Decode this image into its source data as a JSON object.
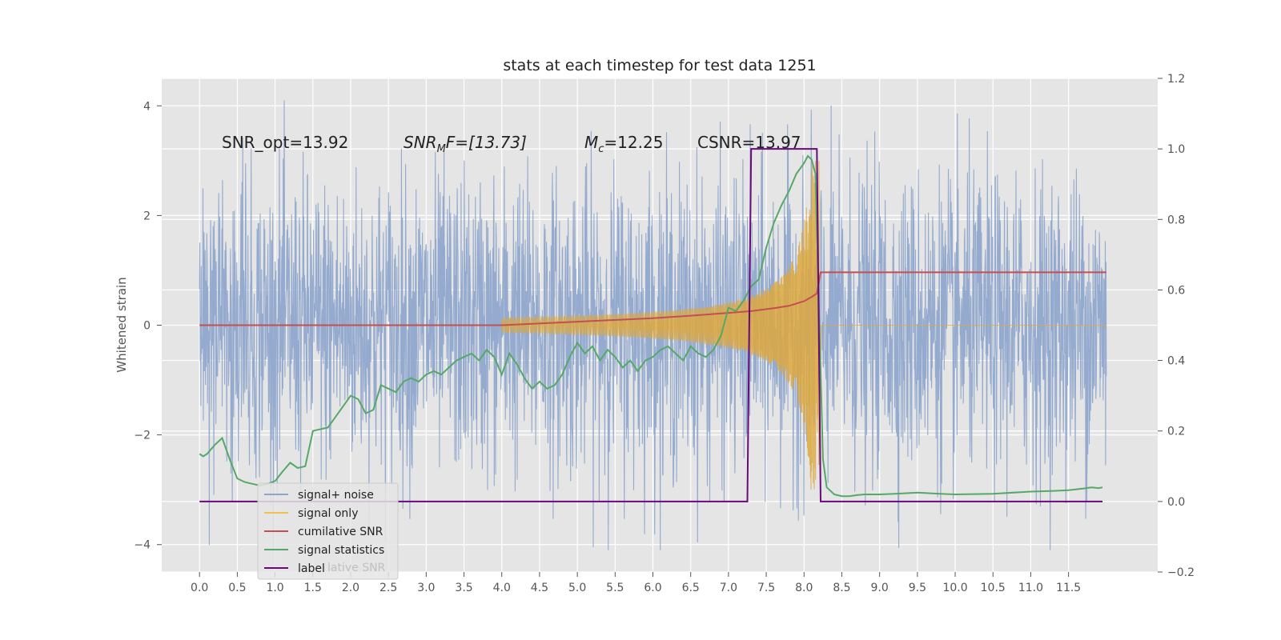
{
  "chart_data": {
    "type": "line",
    "title": "stats at each timestep for test data 1251",
    "xlabel": "",
    "ylabel": "Whitened strain",
    "y2label": "",
    "xlim": [
      -0.5,
      12.68
    ],
    "ylim": [
      -4.5,
      4.5
    ],
    "y2lim": [
      -0.2,
      1.2
    ],
    "grid": true,
    "x_ticks": [
      "0.0",
      "0.5",
      "1.0",
      "1.5",
      "2.0",
      "2.5",
      "3.0",
      "3.5",
      "4.0",
      "4.5",
      "5.0",
      "5.5",
      "6.0",
      "6.5",
      "7.0",
      "7.5",
      "8.0",
      "8.5",
      "9.0",
      "9.5",
      "10.0",
      "10.5",
      "11.0",
      "11.5"
    ],
    "y_ticks": [
      "4",
      "2",
      "0",
      "−2",
      "−4"
    ],
    "y2_ticks": [
      "1.2",
      "1.0",
      "0.8",
      "0.6",
      "0.4",
      "0.2",
      "0.0",
      "−0.2"
    ],
    "annotations": [
      {
        "text": "SNR_opt=13.92"
      },
      {
        "text": "SNR",
        "sub": "M",
        "tail": "F=[13.73]"
      },
      {
        "text": "M",
        "sub": "c",
        "tail": "=12.25"
      },
      {
        "text": "CSNR=13.97"
      }
    ],
    "legend": {
      "placement": "lower-left",
      "entries": [
        {
          "label": "signal+ noise",
          "color": "#8fa6cc"
        },
        {
          "label": "signal only",
          "color": "#f0c050"
        },
        {
          "label": "cumilative SNR",
          "color": "#c44e52"
        },
        {
          "label": "signal statistics",
          "color": "#55a868"
        },
        {
          "label": "label",
          "color": "#6a0a7a"
        }
      ],
      "ghost_text": "lative SNR"
    },
    "series": [
      {
        "name": "signal+ noise",
        "axis": "left",
        "style": "noise",
        "x_range": [
          0.0,
          12.0
        ],
        "amplitude_envelope": [
          -4.1,
          4.1
        ],
        "color": "#8fa6cc"
      },
      {
        "name": "signal only",
        "axis": "left",
        "style": "chirp",
        "start": 4.0,
        "merger": 8.2,
        "peak": 3.0,
        "end_flat": 12.0,
        "color": "#dea83e"
      },
      {
        "name": "cumilative SNR",
        "axis": "right",
        "x": [
          0.0,
          4.0,
          5.0,
          6.0,
          6.5,
          7.0,
          7.3,
          7.6,
          7.8,
          8.0,
          8.1,
          8.17,
          8.22,
          12.0
        ],
        "y": [
          0.5,
          0.5,
          0.51,
          0.52,
          0.527,
          0.535,
          0.54,
          0.548,
          0.555,
          0.568,
          0.58,
          0.59,
          0.65,
          0.65
        ],
        "color": "#c44e52"
      },
      {
        "name": "signal statistics",
        "axis": "right",
        "x": [
          0.0,
          0.05,
          0.1,
          0.2,
          0.3,
          0.4,
          0.5,
          0.6,
          0.7,
          0.8,
          0.9,
          1.0,
          1.1,
          1.2,
          1.3,
          1.4,
          1.5,
          1.6,
          1.7,
          1.8,
          1.9,
          2.0,
          2.1,
          2.2,
          2.3,
          2.4,
          2.5,
          2.6,
          2.7,
          2.8,
          2.9,
          3.0,
          3.1,
          3.2,
          3.3,
          3.4,
          3.5,
          3.6,
          3.7,
          3.8,
          3.9,
          4.0,
          4.1,
          4.2,
          4.3,
          4.4,
          4.5,
          4.6,
          4.7,
          4.8,
          4.9,
          5.0,
          5.1,
          5.2,
          5.3,
          5.4,
          5.5,
          5.6,
          5.7,
          5.8,
          5.9,
          6.0,
          6.1,
          6.2,
          6.3,
          6.4,
          6.5,
          6.6,
          6.7,
          6.8,
          6.9,
          7.0,
          7.1,
          7.2,
          7.3,
          7.4,
          7.5,
          7.6,
          7.7,
          7.8,
          7.9,
          8.0,
          8.05,
          8.1,
          8.15,
          8.2,
          8.25,
          8.3,
          8.4,
          8.5,
          8.6,
          8.7,
          8.8,
          9.0,
          9.2,
          9.5,
          9.8,
          10.0,
          10.5,
          11.0,
          11.3,
          11.5,
          11.7,
          11.8,
          11.9,
          11.95
        ],
        "y": [
          0.135,
          0.128,
          0.135,
          0.16,
          0.18,
          0.12,
          0.065,
          0.055,
          0.05,
          0.045,
          0.05,
          0.058,
          0.085,
          0.11,
          0.095,
          0.1,
          0.2,
          0.205,
          0.21,
          0.24,
          0.27,
          0.3,
          0.29,
          0.25,
          0.26,
          0.33,
          0.32,
          0.31,
          0.34,
          0.35,
          0.34,
          0.36,
          0.37,
          0.36,
          0.38,
          0.4,
          0.41,
          0.42,
          0.4,
          0.43,
          0.41,
          0.36,
          0.42,
          0.39,
          0.35,
          0.32,
          0.34,
          0.32,
          0.33,
          0.36,
          0.41,
          0.45,
          0.42,
          0.44,
          0.4,
          0.43,
          0.41,
          0.38,
          0.4,
          0.37,
          0.4,
          0.41,
          0.43,
          0.44,
          0.42,
          0.4,
          0.44,
          0.42,
          0.41,
          0.43,
          0.47,
          0.55,
          0.54,
          0.57,
          0.61,
          0.63,
          0.72,
          0.79,
          0.84,
          0.88,
          0.93,
          0.96,
          0.98,
          0.97,
          0.93,
          0.52,
          0.12,
          0.04,
          0.02,
          0.015,
          0.015,
          0.018,
          0.02,
          0.02,
          0.022,
          0.025,
          0.022,
          0.02,
          0.022,
          0.028,
          0.03,
          0.032,
          0.037,
          0.04,
          0.038,
          0.04
        ],
        "color": "#55a868"
      },
      {
        "name": "label",
        "axis": "right",
        "x": [
          0.0,
          7.25,
          7.3,
          8.17,
          8.22,
          11.95
        ],
        "y": [
          0.0,
          0.0,
          1.0,
          1.0,
          0.0,
          0.0
        ],
        "color": "#6a0a7a"
      }
    ]
  }
}
